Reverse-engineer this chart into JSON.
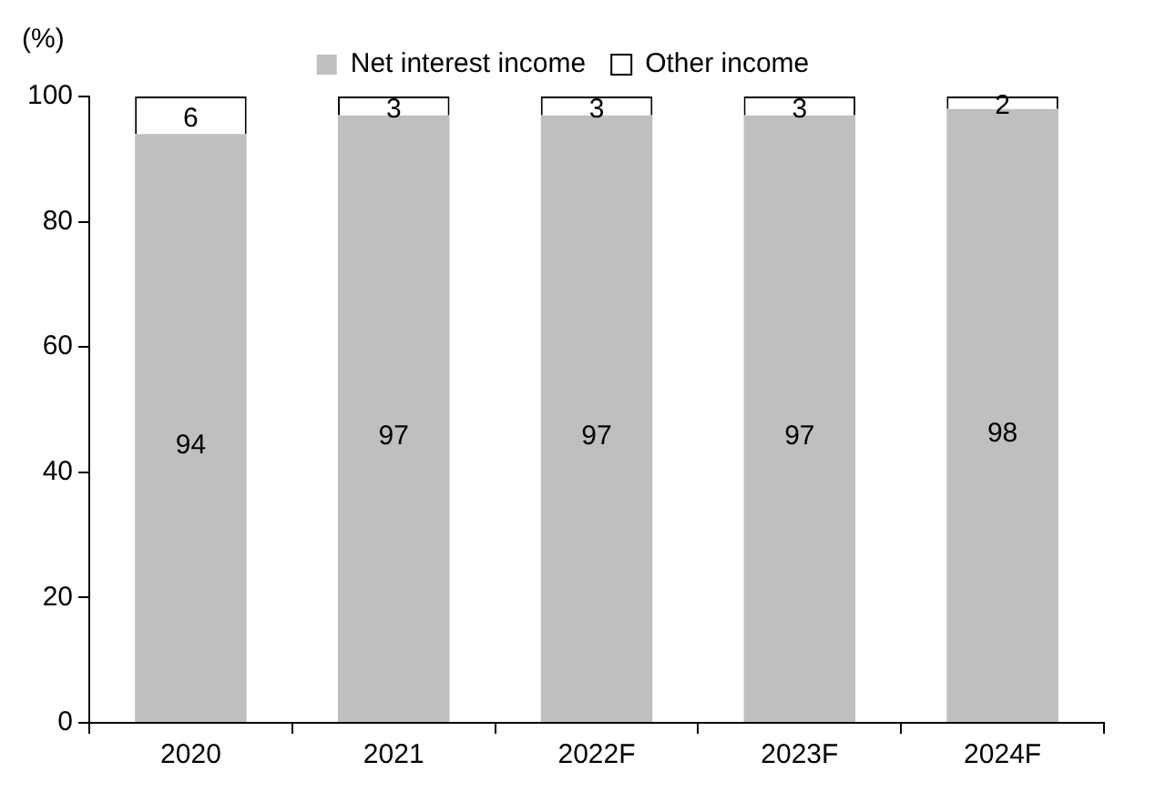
{
  "chart_data": {
    "type": "bar",
    "stacked": true,
    "ylabel": "(%)",
    "categories": [
      "2020",
      "2021",
      "2022F",
      "2023F",
      "2024F"
    ],
    "series": [
      {
        "name": "Net interest income",
        "color": "#bfbfbf",
        "values": [
          94,
          97,
          97,
          97,
          98
        ]
      },
      {
        "name": "Other income",
        "color": "#ffffff",
        "values": [
          6,
          3,
          3,
          3,
          2
        ]
      }
    ],
    "ylim": [
      0,
      100
    ],
    "yticks": [
      0,
      20,
      40,
      60,
      80,
      100
    ],
    "grid": false,
    "legend": "top",
    "data_labels": true
  }
}
